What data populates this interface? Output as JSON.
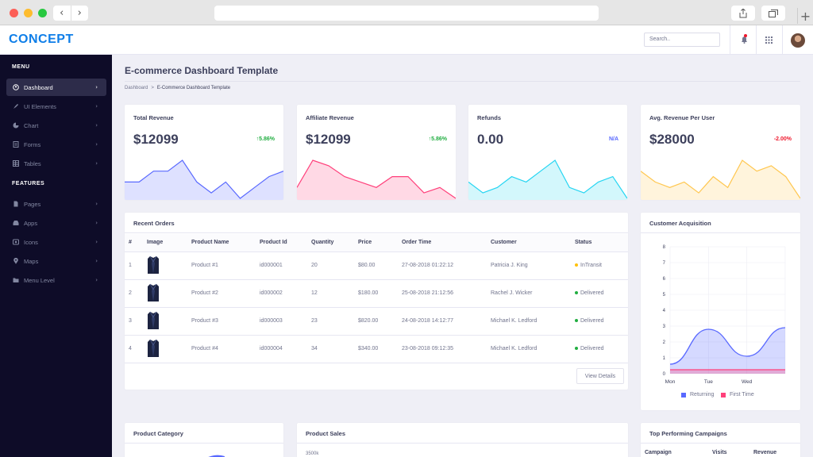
{
  "browser": {
    "back_glyph": "‹",
    "forward_glyph": "›",
    "plus_glyph": "+"
  },
  "header": {
    "brand": "CONCEPT",
    "search_placeholder": "Search..",
    "notification_color": "#ef172c"
  },
  "sidebar": {
    "sections": [
      {
        "title": "MENU",
        "items": [
          {
            "label": "Dashboard",
            "icon": "user-circle-icon",
            "active": true
          },
          {
            "label": "UI Elements",
            "icon": "rocket-icon"
          },
          {
            "label": "Chart",
            "icon": "pie-chart-icon"
          },
          {
            "label": "Forms",
            "icon": "form-icon"
          },
          {
            "label": "Tables",
            "icon": "table-icon"
          }
        ]
      },
      {
        "title": "FEATURES",
        "items": [
          {
            "label": "Pages",
            "icon": "file-icon"
          },
          {
            "label": "Apps",
            "icon": "inbox-icon"
          },
          {
            "label": "Icons",
            "icon": "icons-icon"
          },
          {
            "label": "Maps",
            "icon": "map-marker-icon"
          },
          {
            "label": "Menu Level",
            "icon": "folder-icon"
          }
        ]
      }
    ],
    "chevron": "›"
  },
  "page": {
    "title": "E-commerce Dashboard Template",
    "breadcrumb": [
      "Dashboard",
      "E-Commerce Dashboard Template"
    ],
    "breadcrumb_sep": ">"
  },
  "metrics": [
    {
      "label": "Total Revenue",
      "value": "$12099",
      "delta": "5.86%",
      "trend": "up",
      "color": "#5969ff",
      "series": [
        3,
        3,
        5,
        5,
        7,
        3,
        1,
        3,
        0,
        2,
        4,
        5
      ]
    },
    {
      "label": "Affiliate Revenue",
      "value": "$12099",
      "delta": "5.86%",
      "trend": "up",
      "color": "#ff407b",
      "series": [
        2,
        7,
        6,
        4,
        3,
        2,
        4,
        4,
        1,
        2,
        0
      ]
    },
    {
      "label": "Refunds",
      "value": "0.00",
      "delta": "N/A",
      "trend": "na",
      "color": "#25d5f2",
      "series": [
        3,
        1,
        2,
        4,
        3,
        5,
        7,
        2,
        1,
        3,
        4,
        0
      ]
    },
    {
      "label": "Avg. Revenue Per User",
      "value": "$28000",
      "delta": "-2.00%",
      "trend": "down",
      "color": "#ffc750",
      "series": [
        5,
        3,
        2,
        3,
        1,
        4,
        2,
        7,
        5,
        6,
        4,
        0
      ]
    }
  ],
  "orders": {
    "title": "Recent Orders",
    "columns": [
      "#",
      "Image",
      "Product Name",
      "Product Id",
      "Quantity",
      "Price",
      "Order Time",
      "Customer",
      "Status"
    ],
    "rows": [
      {
        "num": "1",
        "name": "Product #1",
        "id": "id000001",
        "qty": "20",
        "price": "$80.00",
        "time": "27-08-2018 01:22:12",
        "customer": "Patricia J. King",
        "status": "InTransit",
        "status_color": "#ffc108"
      },
      {
        "num": "2",
        "name": "Product #2",
        "id": "id000002",
        "qty": "12",
        "price": "$180.00",
        "time": "25-08-2018 21:12:56",
        "customer": "Rachel J. Wicker",
        "status": "Delivered",
        "status_color": "#21ae41"
      },
      {
        "num": "3",
        "name": "Product #3",
        "id": "id000003",
        "qty": "23",
        "price": "$820.00",
        "time": "24-08-2018 14:12:77",
        "customer": "Michael K. Ledford",
        "status": "Delivered",
        "status_color": "#21ae41"
      },
      {
        "num": "4",
        "name": "Product #4",
        "id": "id000004",
        "qty": "34",
        "price": "$340.00",
        "time": "23-08-2018 09:12:35",
        "customer": "Michael K. Ledford",
        "status": "Delivered",
        "status_color": "#21ae41"
      }
    ],
    "view_details": "View Details"
  },
  "acquisition": {
    "title": "Customer Acquisition",
    "legend": [
      {
        "label": "Returning",
        "color": "#5969ff"
      },
      {
        "label": "First Time",
        "color": "#ff407b"
      }
    ]
  },
  "chart_data": {
    "type": "area",
    "title": "Customer Acquisition",
    "categories": [
      "Mon",
      "Tue",
      "Wed",
      ""
    ],
    "ylim": [
      0,
      8
    ],
    "yticks": [
      "0",
      "1",
      "2",
      "3",
      "4",
      "5",
      "6",
      "7",
      "8"
    ],
    "series": [
      {
        "name": "Returning",
        "values": [
          0.6,
          2.8,
          1.1,
          2.9
        ]
      },
      {
        "name": "First Time",
        "values": [
          0.25,
          0.25,
          0.25,
          0.25
        ]
      }
    ]
  },
  "bottom": {
    "product_category": "Product Category",
    "product_sales": "Product Sales",
    "product_sales_tick": "3500k",
    "top_campaigns": "Top Performing Campaigns",
    "campaign_columns": [
      "Campaign",
      "Visits",
      "Revenue"
    ]
  }
}
